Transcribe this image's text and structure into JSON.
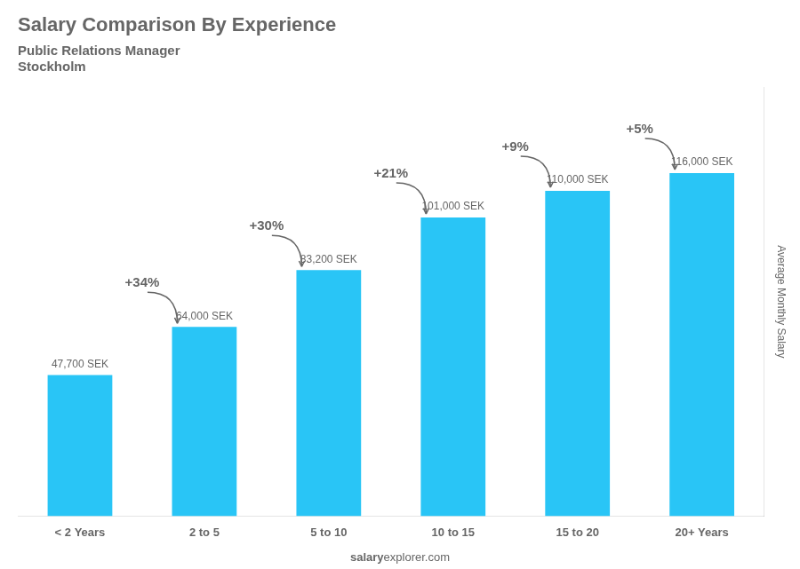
{
  "chart_data": {
    "type": "bar",
    "title": "Salary Comparison By Experience",
    "subtitle": [
      "Public Relations Manager",
      "Stockholm"
    ],
    "ylabel": "Average Monthly Salary",
    "categories": [
      "< 2 Years",
      "2 to 5",
      "5 to 10",
      "10 to 15",
      "15 to 20",
      "20+ Years"
    ],
    "values": [
      47700,
      64000,
      83200,
      101000,
      110000,
      116000
    ],
    "value_labels": [
      "47,700 SEK",
      "64,000 SEK",
      "83,200 SEK",
      "101,000 SEK",
      "110,000 SEK",
      "116,000 SEK"
    ],
    "data_labels": true,
    "color": "#29C5F6",
    "ylim": [
      0,
      145000
    ],
    "grid": false,
    "tick_labels": "x",
    "annotations": [
      {
        "text": "+34%",
        "from": "< 2 Years",
        "to": "2 to 5"
      },
      {
        "text": "+30%",
        "from": "2 to 5",
        "to": "5 to 10"
      },
      {
        "text": "+21%",
        "from": "5 to 10",
        "to": "10 to 15"
      },
      {
        "text": "+9%",
        "from": "10 to 15",
        "to": "15 to 20"
      },
      {
        "text": "+5%",
        "from": "15 to 20",
        "to": "20+ Years"
      }
    ],
    "watermark": [
      "salary",
      "explorer.com"
    ]
  }
}
